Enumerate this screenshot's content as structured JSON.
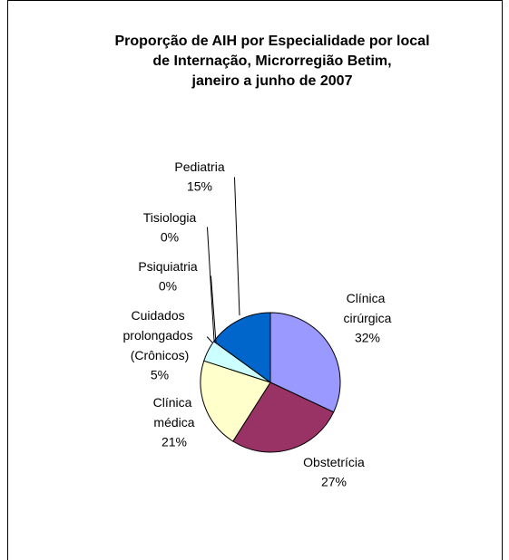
{
  "chart_data": {
    "type": "pie",
    "title": [
      "Proporção de AIH por Especialidade por local",
      "de Internação, Microrregião Betim,",
      "janeiro a junho de 2007"
    ],
    "categories": [
      "Clínica cirúrgica",
      "Obstetrícia",
      "Clínica médica",
      "Cuidados prolongados (Crônicos)",
      "Psiquiatria",
      "Tisiologia",
      "Pediatria"
    ],
    "values": [
      32,
      27,
      21,
      5,
      0,
      0,
      15
    ],
    "value_labels": [
      "32%",
      "27%",
      "21%",
      "5%",
      "0%",
      "0%",
      "15%"
    ],
    "colors": [
      "#9999ff",
      "#993366",
      "#ffffcc",
      "#ccffff",
      "#660066",
      "#ff8080",
      "#0066cc"
    ]
  }
}
